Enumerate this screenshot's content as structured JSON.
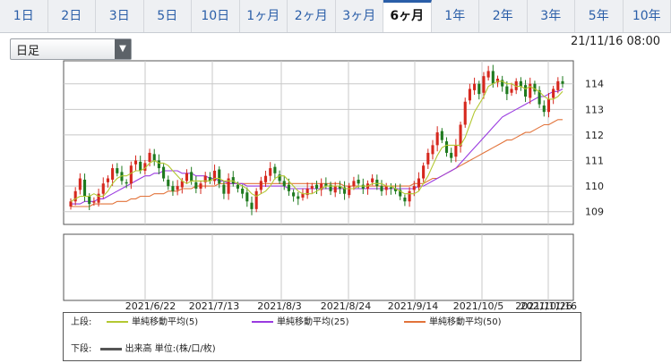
{
  "tabs": [
    {
      "label": "1日",
      "active": false
    },
    {
      "label": "2日",
      "active": false
    },
    {
      "label": "3日",
      "active": false
    },
    {
      "label": "5日",
      "active": false
    },
    {
      "label": "10日",
      "active": false
    },
    {
      "label": "1ヶ月",
      "active": false
    },
    {
      "label": "2ヶ月",
      "active": false
    },
    {
      "label": "3ヶ月",
      "active": false
    },
    {
      "label": "6ヶ月",
      "active": true
    },
    {
      "label": "1年",
      "active": false
    },
    {
      "label": "2年",
      "active": false
    },
    {
      "label": "3年",
      "active": false
    },
    {
      "label": "5年",
      "active": false
    },
    {
      "label": "10年",
      "active": false
    }
  ],
  "period_select": {
    "value": "日足"
  },
  "timestamp": "21/11/16 08:00",
  "legend": {
    "upper_label": "上段:",
    "lower_label": "下段:",
    "ma5": "単純移動平均(5)",
    "ma25": "単純移動平均(25)",
    "ma50": "単純移動平均(50)",
    "volume": "出来高 単位:(株/口/枚)"
  },
  "colors": {
    "up": "#d6281e",
    "down": "#1f7a1f",
    "ma5": "#b3c832",
    "ma25": "#9a3be0",
    "ma50": "#e2733a",
    "grid": "#c8c8c8"
  },
  "chart_data": {
    "type": "candlestick",
    "x_tick_labels": [
      "2021/6/22",
      "2021/7/13",
      "2021/8/3",
      "2021/8/24",
      "2021/9/14",
      "2021/10/5",
      "2021/10/26",
      "2021/11/16"
    ],
    "y_ticks": [
      109,
      110,
      111,
      112,
      113,
      114
    ],
    "ylim": [
      108.5,
      114.9
    ],
    "grid": true,
    "closes": [
      109.4,
      109.8,
      110.3,
      109.6,
      109.3,
      109.4,
      109.7,
      110.1,
      110.3,
      110.7,
      110.5,
      110.2,
      110.1,
      110.8,
      111.0,
      110.6,
      110.9,
      111.3,
      111.0,
      110.7,
      110.3,
      110.0,
      109.8,
      110.0,
      110.2,
      110.5,
      110.2,
      109.9,
      110.1,
      110.4,
      110.2,
      110.6,
      110.1,
      109.7,
      110.3,
      110.1,
      109.9,
      109.7,
      109.4,
      109.1,
      109.8,
      110.2,
      110.4,
      110.7,
      110.5,
      110.2,
      110.0,
      109.8,
      109.6,
      109.5,
      109.7,
      109.9,
      110.0,
      109.9,
      110.1,
      110.0,
      109.8,
      110.0,
      109.9,
      109.7,
      110.0,
      110.2,
      110.1,
      109.9,
      110.1,
      110.3,
      110.0,
      109.8,
      110.0,
      109.9,
      109.8,
      109.6,
      109.4,
      109.8,
      110.0,
      110.3,
      110.8,
      111.3,
      111.6,
      112.1,
      111.8,
      111.3,
      111.1,
      111.6,
      112.4,
      113.3,
      113.8,
      114.0,
      113.6,
      114.3,
      114.5,
      114.0,
      114.2,
      113.9,
      113.6,
      113.8,
      114.1,
      113.9,
      113.5,
      114.0,
      113.7,
      113.2,
      112.9,
      113.4,
      113.8,
      114.1,
      114.0
    ],
    "ma5": [
      109.4,
      109.5,
      109.6,
      109.6,
      109.6,
      109.7,
      109.6,
      109.6,
      109.8,
      110.1,
      110.3,
      110.4,
      110.4,
      110.5,
      110.6,
      110.6,
      110.7,
      110.9,
      111.0,
      110.9,
      110.9,
      110.8,
      110.6,
      110.4,
      110.2,
      110.1,
      110.2,
      110.2,
      110.2,
      110.2,
      110.2,
      110.3,
      110.3,
      110.2,
      110.2,
      110.2,
      110.1,
      110.0,
      109.9,
      109.7,
      109.6,
      109.7,
      109.8,
      110.0,
      110.3,
      110.4,
      110.4,
      110.2,
      110.0,
      109.8,
      109.7,
      109.7,
      109.7,
      109.8,
      109.9,
      110.0,
      110.0,
      110.0,
      110.0,
      109.9,
      109.9,
      109.9,
      110.0,
      110.0,
      110.0,
      110.1,
      110.1,
      110.1,
      110.0,
      110.0,
      109.9,
      109.8,
      109.7,
      109.7,
      109.7,
      109.8,
      110.1,
      110.4,
      110.8,
      111.2,
      111.5,
      111.6,
      111.6,
      111.6,
      111.6,
      111.9,
      112.4,
      112.9,
      113.2,
      113.5,
      113.9,
      114.0,
      114.1,
      114.1,
      114.0,
      114.0,
      113.9,
      113.9,
      113.8,
      113.9,
      113.8,
      113.7,
      113.5,
      113.4,
      113.4,
      113.5,
      113.7
    ],
    "ma25": [
      109.3,
      109.3,
      109.3,
      109.4,
      109.4,
      109.4,
      109.5,
      109.5,
      109.6,
      109.7,
      109.8,
      109.9,
      110.0,
      110.1,
      110.2,
      110.3,
      110.4,
      110.4,
      110.5,
      110.5,
      110.6,
      110.6,
      110.6,
      110.6,
      110.5,
      110.5,
      110.5,
      110.4,
      110.4,
      110.4,
      110.3,
      110.3,
      110.2,
      110.2,
      110.1,
      110.1,
      110.1,
      110.1,
      110.0,
      110.0,
      110.0,
      110.0,
      110.0,
      110.0,
      110.0,
      110.0,
      110.0,
      109.9,
      109.9,
      109.9,
      109.9,
      109.9,
      109.9,
      109.9,
      109.9,
      109.9,
      109.9,
      109.9,
      109.9,
      109.9,
      109.9,
      109.9,
      109.9,
      109.9,
      109.9,
      109.9,
      109.9,
      109.9,
      109.9,
      109.9,
      109.9,
      109.9,
      109.9,
      109.9,
      109.9,
      110.0,
      110.0,
      110.1,
      110.2,
      110.3,
      110.4,
      110.5,
      110.6,
      110.7,
      110.9,
      111.1,
      111.3,
      111.5,
      111.7,
      111.9,
      112.1,
      112.3,
      112.5,
      112.7,
      112.8,
      112.9,
      113.0,
      113.1,
      113.2,
      113.3,
      113.4,
      113.5,
      113.5,
      113.6,
      113.7,
      113.7,
      113.8
    ],
    "ma50": [
      109.2,
      109.2,
      109.2,
      109.2,
      109.2,
      109.3,
      109.3,
      109.3,
      109.3,
      109.3,
      109.4,
      109.4,
      109.4,
      109.5,
      109.5,
      109.6,
      109.6,
      109.6,
      109.7,
      109.7,
      109.7,
      109.8,
      109.8,
      109.8,
      109.9,
      109.9,
      109.9,
      110.0,
      110.0,
      110.0,
      110.0,
      110.0,
      110.1,
      110.1,
      110.1,
      110.1,
      110.1,
      110.1,
      110.1,
      110.1,
      110.1,
      110.1,
      110.1,
      110.1,
      110.1,
      110.1,
      110.1,
      110.1,
      110.1,
      110.1,
      110.1,
      110.1,
      110.1,
      110.1,
      110.1,
      110.1,
      110.1,
      110.1,
      110.1,
      110.0,
      110.0,
      110.0,
      110.0,
      110.0,
      110.0,
      110.0,
      110.0,
      110.0,
      110.0,
      110.0,
      110.0,
      110.0,
      110.0,
      110.0,
      110.1,
      110.1,
      110.1,
      110.2,
      110.3,
      110.3,
      110.4,
      110.5,
      110.6,
      110.7,
      110.8,
      110.9,
      111.0,
      111.1,
      111.2,
      111.3,
      111.4,
      111.5,
      111.6,
      111.7,
      111.8,
      111.8,
      111.9,
      112.0,
      112.1,
      112.1,
      112.2,
      112.3,
      112.4,
      112.4,
      112.5,
      112.6,
      112.6
    ]
  }
}
